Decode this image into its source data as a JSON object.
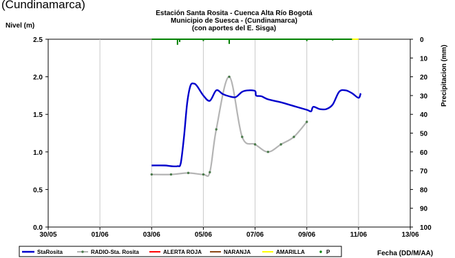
{
  "top_partial_text": "(Cundinamarca)",
  "chart_data": {
    "type": "line",
    "title_lines": [
      "Estación Santa Rosita - Cuenca Alta Río Bogotá",
      "Municipio de Suesca - (Cundinamarca)",
      "(con aportes del  E. Sisga)"
    ],
    "ylabel": "Nivel (m)",
    "y2label": "Precipitacion (mm)",
    "xlabel": "Fecha (DD/M/AA)",
    "x_ticks": [
      "30/05",
      "01/06",
      "03/06",
      "05/06",
      "07/06",
      "09/06",
      "11/06",
      "13/06"
    ],
    "xlim": [
      "30/05",
      "13/06"
    ],
    "ylim": [
      0,
      2.5
    ],
    "y_ticks": [
      "0.0",
      "0.5",
      "1.0",
      "1.5",
      "2.0",
      "2.5"
    ],
    "y2lim": [
      100,
      0
    ],
    "y2_ticks": [
      "0",
      "10",
      "20",
      "30",
      "40",
      "50",
      "60",
      "70",
      "80",
      "90",
      "100"
    ],
    "grid": "vertical",
    "legend_position": "bottom",
    "legend": [
      "StaRosita",
      "RADIO-Sta. Rosita",
      "ALERTA ROJA",
      "NARANJA",
      "AMARILLA",
      "P"
    ],
    "colors": {
      "starosita": "#0000cc",
      "radio": "#b4b4b4",
      "radio_marker": "#4a7a4a",
      "alerta_roja": "#ff0000",
      "naranja": "#8b4513",
      "amarilla": "#ffff00",
      "precip": "#008000"
    },
    "series": [
      {
        "name": "StaRosita",
        "x": [
          "03/06 00:00",
          "03/06 12:00",
          "03/06 18:00",
          "04/06 00:00",
          "04/06 03:00",
          "04/06 06:00",
          "04/06 09:00",
          "04/06 12:00",
          "04/06 15:00",
          "04/06 18:00",
          "05/06 00:00",
          "05/06 06:00",
          "05/06 12:00",
          "05/06 18:00",
          "06/06 00:00",
          "06/06 06:00",
          "06/06 12:00",
          "06/06 18:00",
          "07/06 00:00",
          "07/06 01:00",
          "07/06 06:00",
          "07/06 12:00",
          "08/06 00:00",
          "08/06 12:00",
          "09/06 00:00",
          "09/06 04:00",
          "09/06 06:00",
          "09/06 12:00",
          "09/06 18:00",
          "10/06 00:00",
          "10/06 06:00",
          "10/06 12:00",
          "10/06 18:00",
          "11/06 00:00",
          "11/06 02:00"
        ],
        "y": [
          0.82,
          0.82,
          0.81,
          0.81,
          0.85,
          1.2,
          1.65,
          1.88,
          1.91,
          1.88,
          1.75,
          1.68,
          1.82,
          1.77,
          1.74,
          1.73,
          1.8,
          1.82,
          1.81,
          1.75,
          1.74,
          1.7,
          1.66,
          1.61,
          1.56,
          1.54,
          1.6,
          1.57,
          1.57,
          1.63,
          1.8,
          1.82,
          1.78,
          1.72,
          1.78
        ]
      },
      {
        "name": "RADIO-Sta. Rosita",
        "x": [
          "03/06 00:00",
          "03/06 18:00",
          "04/06 10:00",
          "05/06 00:00",
          "05/06 06:00",
          "05/06 12:00",
          "06/06 00:00",
          "06/06 12:00",
          "07/06 00:00",
          "07/06 12:00",
          "08/06 00:00",
          "08/06 12:00",
          "09/06 00:00",
          "09/06 12:00"
        ],
        "y": [
          0.7,
          0.7,
          0.72,
          0.7,
          0.73,
          1.3,
          2.0,
          1.2,
          1.1,
          1.0,
          1.1,
          1.2,
          1.4,
          null
        ]
      },
      {
        "name": "P",
        "axis": "right",
        "baseline_mm": 0,
        "spikes": [
          {
            "x": "04/06 00:00",
            "mm": 3
          },
          {
            "x": "04/06 02:00",
            "mm": 1.5
          },
          {
            "x": "05/06 00:00",
            "mm": 1
          },
          {
            "x": "06/06 00:00",
            "mm": 2.5
          },
          {
            "x": "09/06 00:00",
            "mm": 1
          },
          {
            "x": "10/06 00:00",
            "mm": 0.7
          }
        ]
      }
    ]
  }
}
